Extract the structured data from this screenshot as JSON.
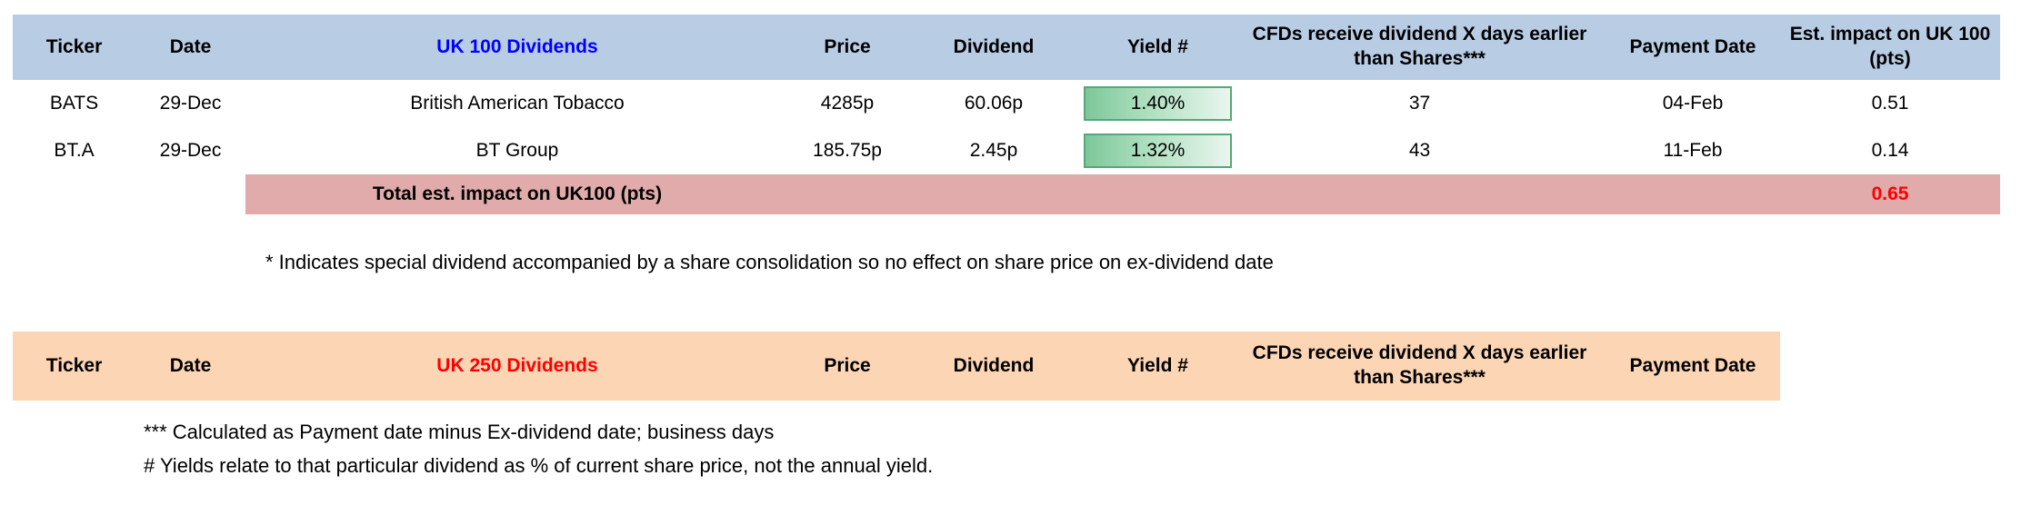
{
  "table1": {
    "headers": [
      "Ticker",
      "Date",
      "UK 100 Dividends",
      "Price",
      "Dividend",
      "Yield #",
      "CFDs receive dividend X days earlier than Shares***",
      "Payment Date",
      "Est. impact on UK 100 (pts)"
    ],
    "rows": [
      {
        "ticker": "BATS",
        "date": "29-Dec",
        "name": "British American Tobacco",
        "price": "4285p",
        "dividend": "60.06p",
        "yield": "1.40%",
        "cfd_days": "37",
        "payment_date": "04-Feb",
        "impact": "0.51"
      },
      {
        "ticker": "BT.A",
        "date": "29-Dec",
        "name": "BT Group",
        "price": "185.75p",
        "dividend": "2.45p",
        "yield": "1.32%",
        "cfd_days": "43",
        "payment_date": "11-Feb",
        "impact": "0.14"
      }
    ],
    "total": {
      "label": "Total est. impact on UK100 (pts)",
      "value": "0.65"
    }
  },
  "note_special": "* Indicates special dividend accompanied by a share consolidation so no effect on share price on ex-dividend date",
  "table2": {
    "headers": [
      "Ticker",
      "Date",
      "UK 250 Dividends",
      "Price",
      "Dividend",
      "Yield #",
      "CFDs receive dividend X days earlier than Shares***",
      "Payment Date"
    ]
  },
  "footnotes": [
    "*** Calculated as Payment date minus Ex-dividend date; business days",
    "# Yields relate to that particular dividend as % of current share price, not the annual yield."
  ],
  "colors": {
    "uk100_header_bg": "#b8cce4",
    "uk100_title_text": "#0000ff",
    "uk250_header_bg": "#fcd5b4",
    "uk250_title_text": "#ff0000",
    "total_row_bg": "#e0abaa",
    "total_value_text": "#ff0000",
    "yield_fill_green": "#7ec79a",
    "yield_border_green": "#56a878"
  }
}
